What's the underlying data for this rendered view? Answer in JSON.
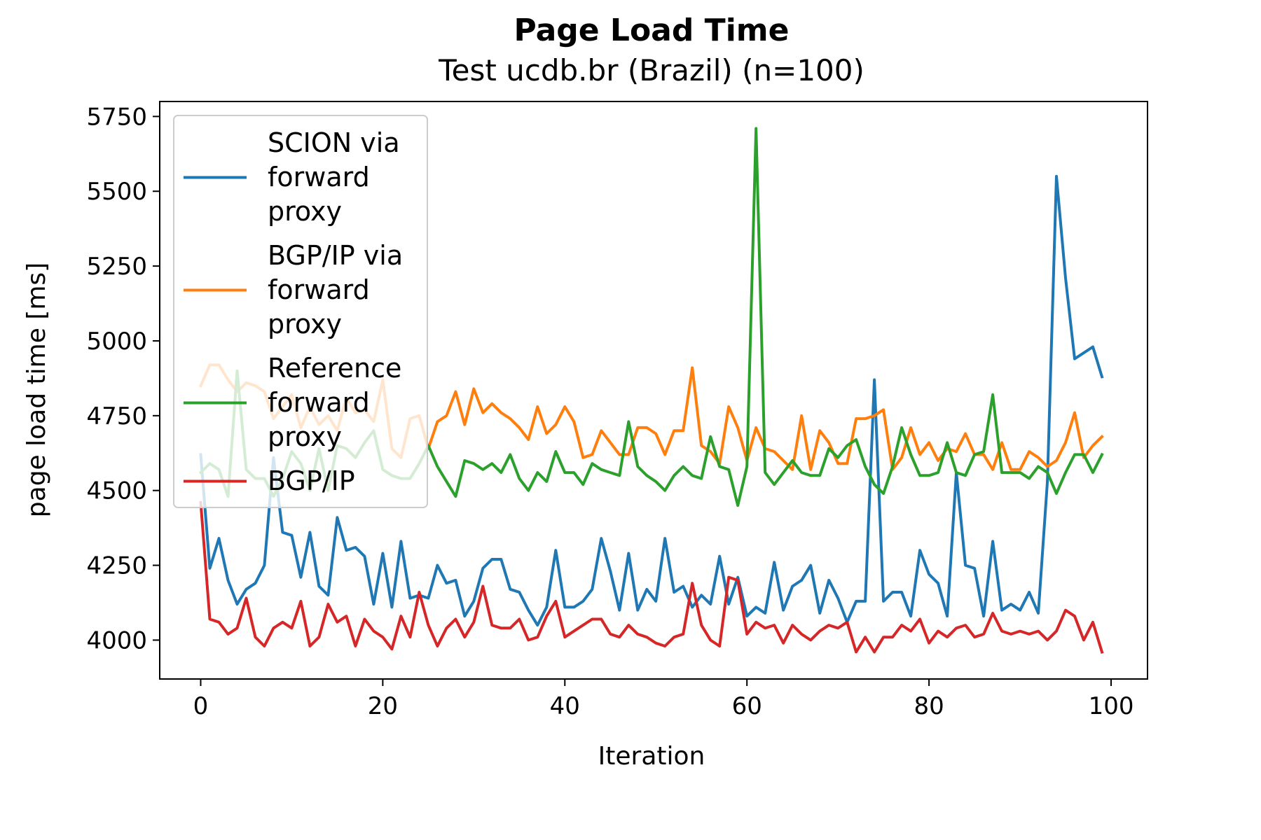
{
  "chart_data": {
    "type": "line",
    "title": "Page Load Time",
    "subtitle": "Test ucdb.br (Brazil) (n=100)",
    "xlabel": "Iteration",
    "ylabel": "page load time [ms]",
    "xlim": [
      -4.5,
      104
    ],
    "ylim": [
      3870,
      5800
    ],
    "xticks": [
      0,
      20,
      40,
      60,
      80,
      100
    ],
    "yticks": [
      4000,
      4250,
      4500,
      4750,
      5000,
      5250,
      5500,
      5750
    ],
    "grid": false,
    "legend_position": "top-left",
    "x": [
      0,
      1,
      2,
      3,
      4,
      5,
      6,
      7,
      8,
      9,
      10,
      11,
      12,
      13,
      14,
      15,
      16,
      17,
      18,
      19,
      20,
      21,
      22,
      23,
      24,
      25,
      26,
      27,
      28,
      29,
      30,
      31,
      32,
      33,
      34,
      35,
      36,
      37,
      38,
      39,
      40,
      41,
      42,
      43,
      44,
      45,
      46,
      47,
      48,
      49,
      50,
      51,
      52,
      53,
      54,
      55,
      56,
      57,
      58,
      59,
      60,
      61,
      62,
      63,
      64,
      65,
      66,
      67,
      68,
      69,
      70,
      71,
      72,
      73,
      74,
      75,
      76,
      77,
      78,
      79,
      80,
      81,
      82,
      83,
      84,
      85,
      86,
      87,
      88,
      89,
      90,
      91,
      92,
      93,
      94,
      95,
      96,
      97,
      98,
      99
    ],
    "series": [
      {
        "name": "SCION via forward proxy",
        "legend_lines": [
          "SCION via",
          "forward",
          "proxy"
        ],
        "color": "#1f77b4",
        "values": [
          4620,
          4240,
          4340,
          4200,
          4120,
          4170,
          4190,
          4250,
          4610,
          4360,
          4350,
          4210,
          4360,
          4180,
          4150,
          4410,
          4300,
          4310,
          4280,
          4120,
          4290,
          4110,
          4330,
          4140,
          4150,
          4140,
          4250,
          4190,
          4200,
          4080,
          4130,
          4240,
          4270,
          4270,
          4170,
          4160,
          4100,
          4050,
          4110,
          4300,
          4110,
          4110,
          4130,
          4170,
          4340,
          4230,
          4100,
          4290,
          4100,
          4170,
          4130,
          4340,
          4160,
          4180,
          4110,
          4150,
          4120,
          4280,
          4120,
          4210,
          4080,
          4110,
          4090,
          4260,
          4100,
          4180,
          4200,
          4250,
          4090,
          4200,
          4140,
          4060,
          4130,
          4130,
          4870,
          4130,
          4160,
          4160,
          4080,
          4300,
          4220,
          4190,
          4080,
          4560,
          4250,
          4240,
          4080,
          4330,
          4100,
          4120,
          4100,
          4160,
          4090,
          4530,
          5550,
          5210,
          4940,
          4960,
          4980,
          4880
        ]
      },
      {
        "name": "BGP/IP via forward proxy",
        "legend_lines": [
          "BGP/IP via",
          "forward",
          "proxy"
        ],
        "color": "#ff7f0e",
        "values": [
          4850,
          4920,
          4920,
          4870,
          4830,
          4860,
          4850,
          4830,
          4740,
          4780,
          4820,
          4710,
          4780,
          4720,
          4750,
          4700,
          4810,
          4760,
          4770,
          4730,
          4870,
          4640,
          4610,
          4740,
          4750,
          4640,
          4730,
          4750,
          4830,
          4720,
          4840,
          4760,
          4790,
          4760,
          4740,
          4710,
          4670,
          4780,
          4690,
          4720,
          4780,
          4730,
          4610,
          4620,
          4700,
          4660,
          4620,
          4620,
          4710,
          4710,
          4690,
          4620,
          4700,
          4700,
          4910,
          4650,
          4630,
          4590,
          4780,
          4710,
          4600,
          4710,
          4640,
          4630,
          4600,
          4570,
          4750,
          4570,
          4700,
          4660,
          4590,
          4590,
          4740,
          4740,
          4750,
          4770,
          4570,
          4610,
          4710,
          4620,
          4660,
          4600,
          4640,
          4630,
          4690,
          4620,
          4620,
          4570,
          4660,
          4570,
          4570,
          4630,
          4610,
          4580,
          4600,
          4660,
          4760,
          4610,
          4650,
          4680
        ]
      },
      {
        "name": "Reference forward proxy",
        "legend_lines": [
          "Reference",
          "forward",
          "proxy"
        ],
        "color": "#2ca02c",
        "values": [
          4560,
          4590,
          4570,
          4480,
          4900,
          4570,
          4540,
          4540,
          4480,
          4540,
          4630,
          4590,
          4500,
          4640,
          4500,
          4650,
          4640,
          4610,
          4660,
          4700,
          4570,
          4550,
          4540,
          4540,
          4590,
          4650,
          4580,
          4530,
          4480,
          4600,
          4590,
          4570,
          4590,
          4560,
          4620,
          4540,
          4500,
          4560,
          4530,
          4630,
          4560,
          4560,
          4520,
          4590,
          4570,
          4560,
          4550,
          4730,
          4580,
          4550,
          4530,
          4500,
          4550,
          4580,
          4550,
          4540,
          4680,
          4580,
          4570,
          4450,
          4580,
          5710,
          4560,
          4520,
          4560,
          4600,
          4560,
          4550,
          4550,
          4640,
          4610,
          4650,
          4670,
          4580,
          4520,
          4490,
          4580,
          4710,
          4620,
          4550,
          4550,
          4560,
          4660,
          4560,
          4550,
          4620,
          4630,
          4820,
          4560,
          4560,
          4560,
          4540,
          4580,
          4560,
          4490,
          4560,
          4620,
          4620,
          4560,
          4620
        ]
      },
      {
        "name": "BGP/IP",
        "legend_lines": [
          "BGP/IP"
        ],
        "color": "#d62728",
        "values": [
          4460,
          4070,
          4060,
          4020,
          4040,
          4140,
          4010,
          3980,
          4040,
          4060,
          4040,
          4130,
          3980,
          4010,
          4120,
          4060,
          4080,
          3980,
          4070,
          4030,
          4010,
          3970,
          4080,
          4010,
          4160,
          4050,
          3980,
          4040,
          4070,
          4010,
          4060,
          4180,
          4050,
          4040,
          4040,
          4070,
          4000,
          4010,
          4080,
          4130,
          4010,
          4030,
          4050,
          4070,
          4070,
          4020,
          4010,
          4050,
          4020,
          4010,
          3990,
          3980,
          4010,
          4020,
          4190,
          4050,
          4000,
          3980,
          4210,
          4200,
          4020,
          4060,
          4040,
          4050,
          3990,
          4050,
          4020,
          4000,
          4030,
          4050,
          4040,
          4060,
          3960,
          4010,
          3960,
          4010,
          4010,
          4050,
          4030,
          4070,
          3990,
          4030,
          4010,
          4040,
          4050,
          4010,
          4020,
          4090,
          4030,
          4020,
          4030,
          4020,
          4030,
          4000,
          4030,
          4100,
          4080,
          4000,
          4060,
          3960
        ]
      }
    ]
  }
}
